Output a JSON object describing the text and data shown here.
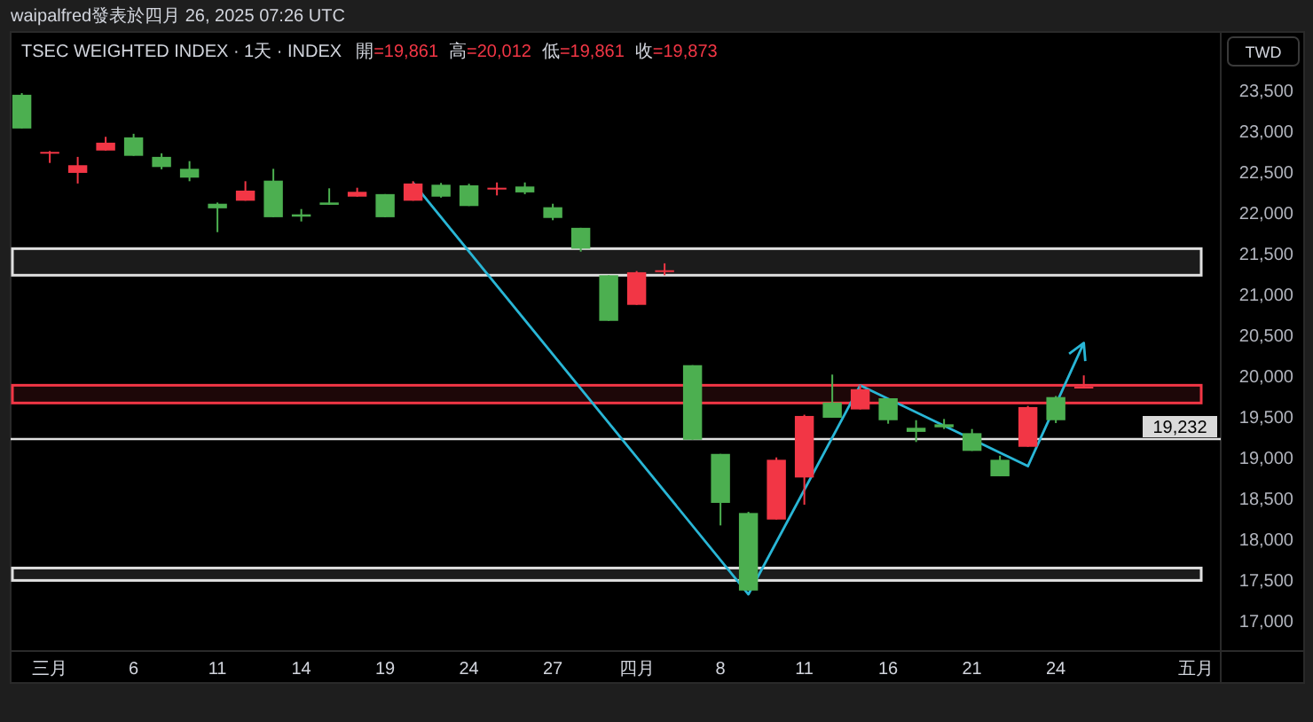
{
  "chart_data": {
    "type": "candlestick",
    "title": "TSEC WEIGHTED INDEX · 1天 · INDEX",
    "subtitle": "waipalfred發表於四月 26, 2025 07:26 UTC",
    "annotations": [
      "開=19,861",
      "高=20,012",
      "低=19,861",
      "收=19,873",
      "TWD"
    ],
    "categories": [
      null,
      "三月",
      null,
      null,
      "6",
      null,
      null,
      "11",
      null,
      null,
      "14",
      null,
      null,
      "19",
      null,
      null,
      "24",
      null,
      null,
      "27",
      null,
      null,
      "四月",
      null,
      null,
      "8",
      null,
      null,
      "11",
      null,
      null,
      "16",
      null,
      null,
      "21",
      null,
      null,
      "24",
      null,
      null,
      null,
      null,
      "五月"
    ],
    "ohlc": [
      [
        23450,
        23470,
        23037,
        23037
      ],
      [
        22739,
        22761,
        22615,
        22750
      ],
      [
        22493,
        22689,
        22363,
        22587
      ],
      [
        22767,
        22935,
        22767,
        22863
      ],
      [
        22928,
        22972,
        22702,
        22702
      ],
      [
        22689,
        22733,
        22537,
        22565
      ],
      [
        22543,
        22637,
        22391,
        22435
      ],
      [
        22115,
        22130,
        21767,
        22059
      ],
      [
        22152,
        22391,
        22152,
        22276
      ],
      [
        22398,
        22543,
        21950,
        21950
      ],
      [
        21985,
        22050,
        21898,
        21957
      ],
      [
        22130,
        22304,
        22102,
        22102
      ],
      [
        22202,
        22311,
        22202,
        22261
      ],
      [
        22233,
        22233,
        21950,
        21950
      ],
      [
        22152,
        22391,
        22152,
        22363
      ],
      [
        22348,
        22370,
        22190,
        22202
      ],
      [
        22341,
        22360,
        22087,
        22087
      ],
      [
        22291,
        22376,
        22217,
        22311
      ],
      [
        22326,
        22376,
        22232,
        22254
      ],
      [
        22072,
        22115,
        21913,
        21941
      ],
      [
        21820,
        21820,
        21528,
        21565
      ],
      [
        21239,
        21239,
        20680,
        20680
      ],
      [
        20876,
        21290,
        20876,
        21276
      ],
      [
        21290,
        21385,
        21239,
        21300
      ],
      [
        20137,
        20137,
        19224,
        19224
      ],
      [
        19050,
        19050,
        18174,
        18450
      ],
      [
        18326,
        18340,
        17376,
        17376
      ],
      [
        18246,
        19007,
        18246,
        18978
      ],
      [
        18761,
        19530,
        18428,
        19515
      ],
      [
        19680,
        20022,
        19493,
        19493
      ],
      [
        19595,
        19898,
        19595,
        19843
      ],
      [
        19732,
        19732,
        19420,
        19463
      ],
      [
        19370,
        19463,
        19196,
        19320
      ],
      [
        19413,
        19478,
        19355,
        19376
      ],
      [
        19304,
        19355,
        19087,
        19087
      ],
      [
        18978,
        19028,
        18776,
        18776
      ],
      [
        19137,
        19639,
        19137,
        19624
      ],
      [
        19746,
        19760,
        19428,
        19463
      ],
      [
        19861,
        20012,
        19861,
        19873
      ],
      null,
      null,
      null,
      null
    ],
    "colors": [
      "#4caf50",
      "#f23645",
      "#f23645",
      "#f23645",
      "#4caf50",
      "#4caf50",
      "#4caf50",
      "#4caf50",
      "#f23645",
      "#4caf50",
      "#4caf50",
      "#4caf50",
      "#f23645",
      "#4caf50",
      "#f23645",
      "#4caf50",
      "#4caf50",
      "#f23645",
      "#4caf50",
      "#4caf50",
      "#4caf50",
      "#4caf50",
      "#f23645",
      "#f23645",
      "#4caf50",
      "#4caf50",
      "#4caf50",
      "#f23645",
      "#f23645",
      "#4caf50",
      "#f23645",
      "#4caf50",
      "#4caf50",
      "#4caf50",
      "#4caf50",
      "#4caf50",
      "#f23645",
      "#4caf50",
      "#f23645",
      null,
      null,
      null,
      null
    ],
    "series": [
      {
        "type": "line",
        "color": "#29b6d6",
        "values": [
          null,
          null,
          null,
          null,
          null,
          null,
          null,
          null,
          null,
          null,
          null,
          null,
          null,
          null,
          22370,
          null,
          null,
          null,
          null,
          null,
          null,
          null,
          null,
          null,
          null,
          null,
          17330,
          null,
          null,
          null,
          19890,
          null,
          null,
          null,
          null,
          null,
          18900,
          null,
          20410,
          null,
          null,
          null,
          null
        ]
      }
    ],
    "ylim": [
      16700,
      24220
    ],
    "yticks": [
      {
        "value": 17000,
        "label": "17,000"
      },
      {
        "value": 17500,
        "label": "17,500"
      },
      {
        "value": 18000,
        "label": "18,000"
      },
      {
        "value": 18500,
        "label": "18,500"
      },
      {
        "value": 19000,
        "label": "19,000"
      },
      {
        "value": 19500,
        "label": "19,500"
      },
      {
        "value": 20000,
        "label": "20,000"
      },
      {
        "value": 20500,
        "label": "20,500"
      },
      {
        "value": 21000,
        "label": "21,000"
      },
      {
        "value": 21500,
        "label": "21,500"
      },
      {
        "value": 22000,
        "label": "22,000"
      },
      {
        "value": 22500,
        "label": "22,500"
      },
      {
        "value": 23000,
        "label": "23,000"
      },
      {
        "value": 23500,
        "label": "23,500"
      }
    ],
    "bands": [
      {
        "axis": "y",
        "from": 21239,
        "to": 21565,
        "color": "#e0e0e0"
      },
      {
        "axis": "y",
        "from": 19674,
        "to": 19891,
        "color": "#f23645"
      },
      {
        "axis": "y",
        "from": 17500,
        "to": 17652,
        "color": "#e0e0e0"
      }
    ],
    "ref_lines": [
      {
        "axis": "y",
        "value": 19232,
        "label": "19,232",
        "color": "#e0e0e0"
      }
    ]
  }
}
